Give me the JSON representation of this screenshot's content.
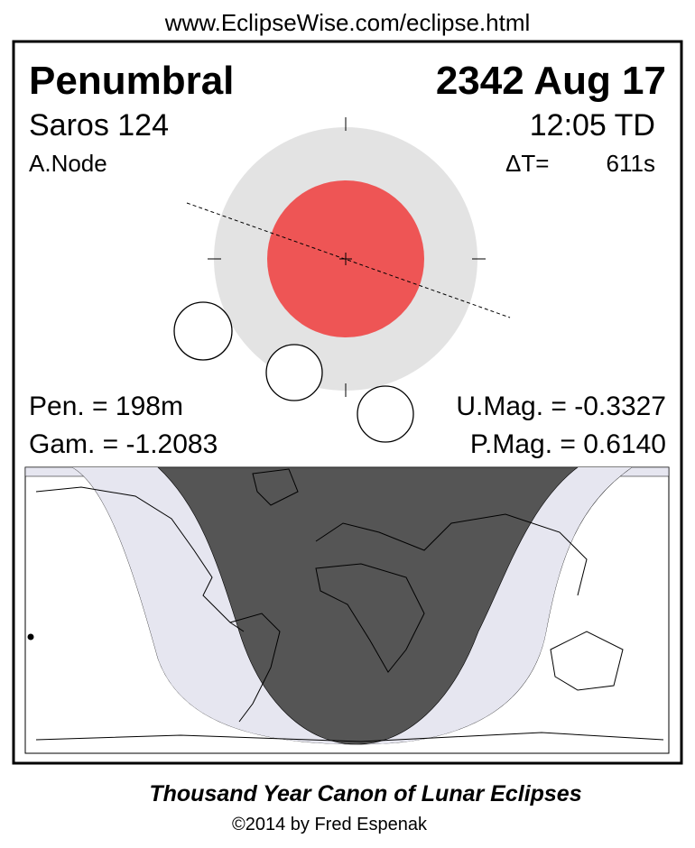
{
  "header": {
    "url": "www.EclipseWise.com/eclipse.html"
  },
  "panel": {
    "type": "Penumbral",
    "date": "2342 Aug 17",
    "saros": "Saros 124",
    "time": "12:05 TD",
    "node": "A.Node",
    "delta_t_label": "ΔT=",
    "delta_t_value": "611s",
    "pen_duration": "Pen. = 198m",
    "gamma": "Gam. = -1.2083",
    "umbral_mag": "U.Mag. = -0.3327",
    "penumbral_mag": "P.Mag. = 0.6140"
  },
  "footer": {
    "title": "Thousand Year Canon of Lunar Eclipses",
    "credit": "©2014 by Fred Espenak"
  }
}
